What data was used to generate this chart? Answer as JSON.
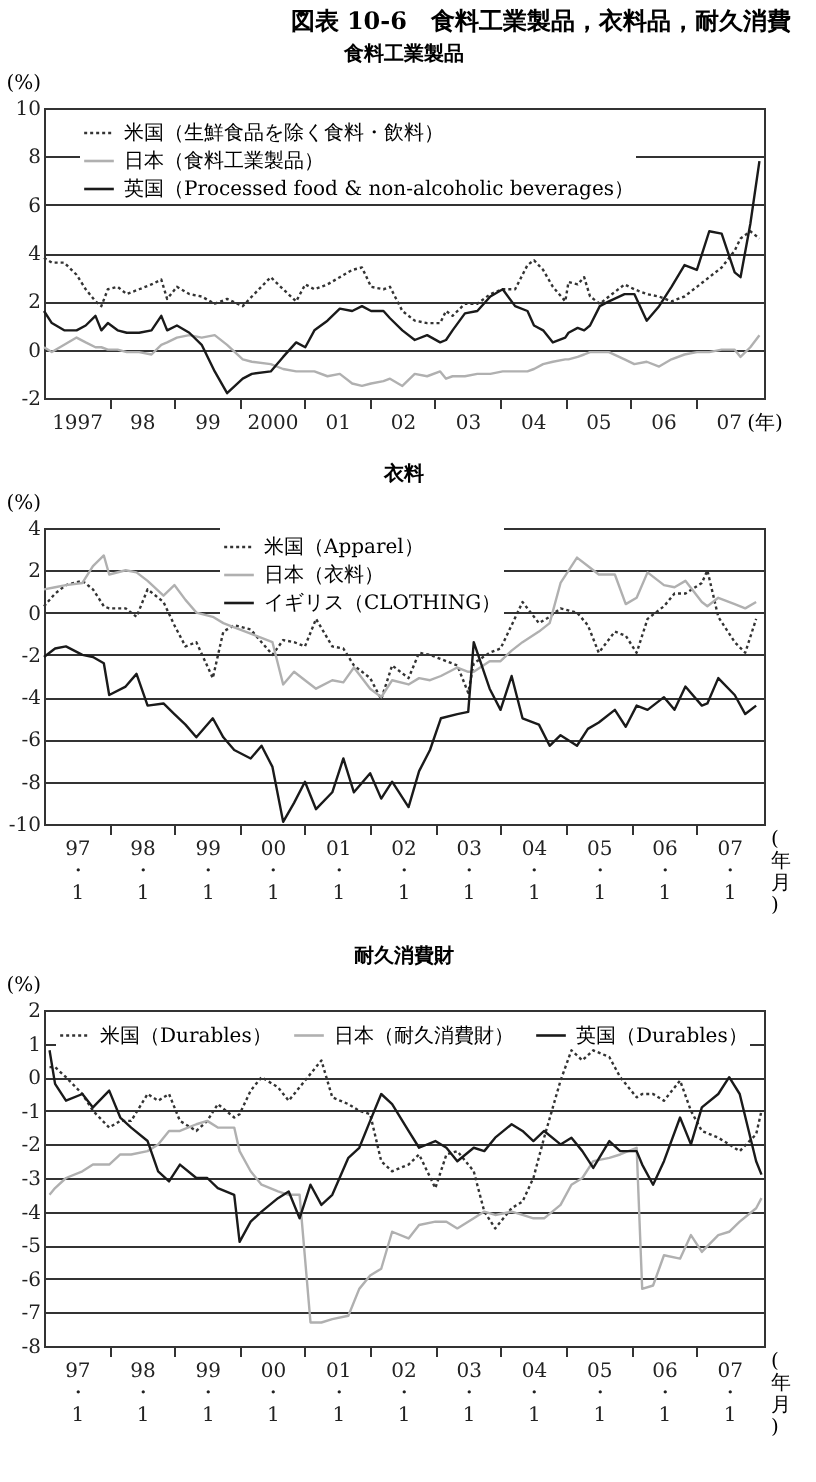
{
  "chart_data": [
    {
      "type": "line",
      "title": "図表 10-6　食料工業製品，衣料品，耐久消費",
      "subtitle": "食料工業製品",
      "ylabel": "(%)",
      "grid": "y",
      "legend": "top left",
      "xlim": [
        1996.5,
        2007.55
      ],
      "xticks": [
        {
          "value": 1997,
          "label": "1997"
        },
        {
          "value": 1997.5,
          "label": null
        },
        {
          "value": 1998,
          "label": "98"
        },
        {
          "value": 1998.5,
          "label": null
        },
        {
          "value": 1999,
          "label": "99"
        },
        {
          "value": 1999.5,
          "label": null
        },
        {
          "value": 2000,
          "label": "2000"
        },
        {
          "value": 2000.5,
          "label": null
        },
        {
          "value": 2001,
          "label": "01"
        },
        {
          "value": 2001.5,
          "label": null
        },
        {
          "value": 2002,
          "label": "02"
        },
        {
          "value": 2002.5,
          "label": null
        },
        {
          "value": 2003,
          "label": "03"
        },
        {
          "value": 2003.5,
          "label": null
        },
        {
          "value": 2004,
          "label": "04"
        },
        {
          "value": 2004.5,
          "label": null
        },
        {
          "value": 2005,
          "label": "05"
        },
        {
          "value": 2005.5,
          "label": null
        },
        {
          "value": 2006,
          "label": "06"
        },
        {
          "value": 2006.5,
          "label": null
        },
        {
          "value": 2007,
          "label": "07"
        }
      ],
      "xlabel": "(年)",
      "ylim": [
        -2,
        10
      ],
      "yticks": [
        -2,
        0,
        2,
        4,
        6,
        8,
        10
      ],
      "x": [
        1996.5,
        1996.62,
        1996.81,
        1997.0,
        1997.14,
        1997.29,
        1997.38,
        1997.48,
        1997.63,
        1997.77,
        1997.96,
        1998.15,
        1998.3,
        1998.39,
        1998.54,
        1998.73,
        1998.92,
        1999.12,
        1999.31,
        1999.55,
        1999.69,
        1999.98,
        2000.17,
        2000.37,
        2000.51,
        2000.65,
        2000.85,
        2001.04,
        2001.23,
        2001.38,
        2001.52,
        2001.71,
        2001.81,
        2002.0,
        2002.19,
        2002.38,
        2002.58,
        2002.67,
        2002.77,
        2002.96,
        2003.15,
        2003.35,
        2003.54,
        2003.73,
        2003.92,
        2004.02,
        2004.16,
        2004.31,
        2004.5,
        2004.55,
        2004.69,
        2004.79,
        2004.88,
        2005.03,
        2005.17,
        2005.41,
        2005.56,
        2005.75,
        2005.94,
        2006.13,
        2006.33,
        2006.52,
        2006.71,
        2006.9,
        2007.1,
        2007.19,
        2007.34,
        2007.48
      ],
      "series": [
        {
          "name": "米国（生鮮食品を除く食料・飲料）",
          "color": "#333333",
          "line_style": "dotted",
          "values": [
            3.8,
            3.6,
            3.6,
            3.1,
            2.5,
            2.0,
            1.8,
            2.5,
            2.6,
            2.3,
            2.5,
            2.7,
            2.9,
            2.1,
            2.6,
            2.3,
            2.2,
            1.9,
            2.1,
            1.8,
            2.2,
            3.0,
            2.5,
            2.0,
            2.7,
            2.5,
            2.7,
            3.0,
            3.3,
            3.4,
            2.6,
            2.5,
            2.6,
            1.6,
            1.2,
            1.1,
            1.1,
            1.6,
            1.4,
            1.9,
            1.9,
            2.3,
            2.5,
            2.5,
            3.5,
            3.7,
            3.3,
            2.6,
            2.0,
            2.8,
            2.7,
            3.0,
            2.2,
            1.9,
            2.2,
            2.7,
            2.5,
            2.3,
            2.2,
            2.0,
            2.2,
            2.6,
            3.0,
            3.4,
            4.1,
            4.6,
            4.9,
            4.6
          ]
        },
        {
          "name": "日本（食料工業製品）",
          "color": "#b0b0b0",
          "line_style": "solid",
          "values": [
            0.1,
            -0.1,
            0.2,
            0.5,
            0.3,
            0.1,
            0.1,
            0.0,
            0.0,
            -0.1,
            -0.1,
            -0.2,
            0.2,
            0.3,
            0.5,
            0.6,
            0.5,
            0.6,
            0.2,
            -0.4,
            -0.5,
            -0.6,
            -0.8,
            -0.9,
            -0.9,
            -0.9,
            -1.1,
            -1.0,
            -1.4,
            -1.5,
            -1.4,
            -1.3,
            -1.2,
            -1.5,
            -1.0,
            -1.1,
            -0.9,
            -1.2,
            -1.1,
            -1.1,
            -1.0,
            -1.0,
            -0.9,
            -0.9,
            -0.9,
            -0.8,
            -0.6,
            -0.5,
            -0.4,
            -0.4,
            -0.3,
            -0.2,
            -0.1,
            -0.1,
            -0.1,
            -0.4,
            -0.6,
            -0.5,
            -0.7,
            -0.4,
            -0.2,
            -0.1,
            -0.1,
            0.0,
            0.0,
            -0.3,
            0.1,
            0.6
          ]
        },
        {
          "name": "英国（Processed food & non-alcoholic beverages）",
          "color": "#1a1a1a",
          "line_style": "solid",
          "values": [
            1.6,
            1.1,
            0.8,
            0.8,
            1.0,
            1.4,
            0.8,
            1.1,
            0.8,
            0.7,
            0.7,
            0.8,
            1.4,
            0.8,
            1.0,
            0.7,
            0.2,
            -0.9,
            -1.8,
            -1.2,
            -1.0,
            -0.9,
            -0.3,
            0.3,
            0.1,
            0.8,
            1.2,
            1.7,
            1.6,
            1.8,
            1.6,
            1.6,
            1.3,
            0.8,
            0.4,
            0.6,
            0.3,
            0.4,
            0.8,
            1.5,
            1.6,
            2.2,
            2.5,
            1.8,
            1.6,
            1.0,
            0.8,
            0.3,
            0.5,
            0.7,
            0.9,
            0.8,
            1.0,
            1.8,
            2.0,
            2.3,
            2.3,
            1.2,
            1.8,
            2.6,
            3.5,
            3.3,
            4.9,
            4.8,
            3.2,
            3.0,
            5.2,
            7.8
          ]
        }
      ]
    },
    {
      "type": "line",
      "title": "衣料",
      "ylabel": "(%)",
      "xlabel": "(年月)",
      "grid": "y",
      "legend": "top",
      "xlim": [
        "1996-07",
        "2007-07-15"
      ],
      "xticks": [
        {
          "value": "1997-01",
          "label": "97\n・\n1"
        },
        {
          "value": "1997-07",
          "label": null
        },
        {
          "value": "1998-01",
          "label": "98\n・\n1"
        },
        {
          "value": "1998-07",
          "label": null
        },
        {
          "value": "1999-01",
          "label": "99\n・\n1"
        },
        {
          "value": "1999-07",
          "label": null
        },
        {
          "value": "2000-01",
          "label": "00\n・\n1"
        },
        {
          "value": "2000-07",
          "label": null
        },
        {
          "value": "2001-01",
          "label": "01\n・\n1"
        },
        {
          "value": "2001-07",
          "label": null
        },
        {
          "value": "2002-01",
          "label": "02\n・\n1"
        },
        {
          "value": "2002-07",
          "label": null
        },
        {
          "value": "2003-01",
          "label": "03\n・\n1"
        },
        {
          "value": "2003-07",
          "label": null
        },
        {
          "value": "2004-01",
          "label": "04\n・\n1"
        },
        {
          "value": "2004-07",
          "label": null
        },
        {
          "value": "2005-01",
          "label": "05\n・\n1"
        },
        {
          "value": "2005-07",
          "label": null
        },
        {
          "value": "2006-01",
          "label": "06\n・\n1"
        },
        {
          "value": "2006-07",
          "label": null
        },
        {
          "value": "2007-01",
          "label": "07\n・\n1"
        }
      ],
      "ylim": [
        -10,
        4
      ],
      "yticks": [
        -10,
        -8,
        -6,
        -4,
        -2,
        0,
        2,
        4
      ],
      "x": [
        "1996-07",
        "1996-09",
        "1996-11",
        "1997-02",
        "1997-04",
        "1997-06",
        "1997-07",
        "1997-10",
        "1997-12",
        "1998-02",
        "1998-05",
        "1998-07",
        "1998-09",
        "1998-11",
        "1999-02",
        "1999-04",
        "1999-06",
        "1999-09",
        "1999-11",
        "2000-01",
        "2000-03",
        "2000-05",
        "2000-07",
        "2000-09",
        "2000-12",
        "2001-02",
        "2001-04",
        "2001-07",
        "2001-09",
        "2001-11",
        "2002-02",
        "2002-04",
        "2002-06",
        "2002-08",
        "2002-11",
        "2003-01",
        "2003-02",
        "2003-05",
        "2003-07",
        "2003-09",
        "2003-11",
        "2004-02",
        "2004-04",
        "2004-06",
        "2004-09",
        "2004-11",
        "2005-01",
        "2005-04",
        "2005-06",
        "2005-08",
        "2005-10",
        "2006-01",
        "2006-03",
        "2006-05",
        "2006-08",
        "2006-09",
        "2006-11",
        "2007-02",
        "2007-04",
        "2007-06"
      ],
      "series": [
        {
          "name": "米国（Apparel）",
          "color": "#333333",
          "line_style": "dotted",
          "values": [
            0.3,
            0.9,
            1.3,
            1.5,
            1.1,
            0.3,
            0.2,
            0.2,
            -0.2,
            1.1,
            0.5,
            -0.6,
            -1.6,
            -1.4,
            -3.1,
            -0.9,
            -0.6,
            -0.8,
            -1.4,
            -2.0,
            -1.3,
            -1.4,
            -1.6,
            -0.3,
            -1.6,
            -1.7,
            -2.5,
            -3.1,
            -4.1,
            -2.5,
            -3.1,
            -1.9,
            -2.0,
            -2.2,
            -2.5,
            -3.8,
            -2.4,
            -1.9,
            -1.7,
            -0.6,
            0.5,
            -0.5,
            -0.2,
            0.2,
            0.0,
            -0.6,
            -1.9,
            -0.9,
            -1.1,
            -1.9,
            -0.3,
            0.3,
            0.9,
            0.9,
            1.4,
            2.0,
            -0.2,
            -1.4,
            -1.9,
            -0.3
          ]
        },
        {
          "name": "日本（衣料）",
          "color": "#b0b0b0",
          "line_style": "solid",
          "values": [
            1.1,
            1.2,
            1.3,
            1.4,
            2.2,
            2.7,
            1.8,
            2.0,
            1.9,
            1.5,
            0.8,
            1.3,
            0.6,
            0.0,
            -0.2,
            -0.5,
            -0.7,
            -1.0,
            -1.2,
            -1.4,
            -3.4,
            -2.8,
            -3.2,
            -3.6,
            -3.2,
            -3.3,
            -2.6,
            -3.6,
            -4.0,
            -3.2,
            -3.4,
            -3.1,
            -3.2,
            -3.0,
            -2.6,
            -2.8,
            -2.8,
            -2.3,
            -2.3,
            -1.8,
            -1.4,
            -0.9,
            -0.5,
            1.4,
            2.6,
            2.2,
            1.8,
            1.8,
            0.4,
            0.7,
            1.9,
            1.3,
            1.2,
            1.5,
            0.5,
            0.3,
            0.7,
            0.4,
            0.2,
            0.5
          ]
        },
        {
          "name": "イギリス（CLOTHING）",
          "color": "#1a1a1a",
          "line_style": "solid",
          "values": [
            -2.1,
            -1.7,
            -1.6,
            -2.0,
            -2.1,
            -2.4,
            -3.9,
            -3.5,
            -2.9,
            -4.4,
            -4.3,
            -4.8,
            -5.3,
            -5.9,
            -5.0,
            -5.9,
            -6.5,
            -6.9,
            -6.3,
            -7.3,
            -9.9,
            -9.0,
            -8.0,
            -9.3,
            -8.5,
            -6.9,
            -8.5,
            -7.6,
            -8.8,
            -8.0,
            -9.2,
            -7.5,
            -6.5,
            -5.0,
            -4.8,
            -4.7,
            -1.4,
            -3.6,
            -4.6,
            -3.0,
            -5.0,
            -5.3,
            -6.3,
            -5.8,
            -6.3,
            -5.5,
            -5.2,
            -4.6,
            -5.4,
            -4.4,
            -4.6,
            -4.0,
            -4.6,
            -3.5,
            -4.4,
            -4.3,
            -3.1,
            -3.9,
            -4.8,
            -4.4
          ]
        }
      ]
    },
    {
      "type": "line",
      "title": "耐久消費財",
      "ylabel": "(%)",
      "xlabel": "(年月)",
      "grid": "y",
      "legend": "top left",
      "xlim": [
        "1996-07",
        "2007-07-15"
      ],
      "xticks": [
        {
          "value": "1997-01",
          "label": "97\n・\n1"
        },
        {
          "value": "1997-07",
          "label": null
        },
        {
          "value": "1998-01",
          "label": "98\n・\n1"
        },
        {
          "value": "1998-07",
          "label": null
        },
        {
          "value": "1999-01",
          "label": "99\n・\n1"
        },
        {
          "value": "1999-07",
          "label": null
        },
        {
          "value": "2000-01",
          "label": "00\n・\n1"
        },
        {
          "value": "2000-07",
          "label": null
        },
        {
          "value": "2001-01",
          "label": "01\n・\n1"
        },
        {
          "value": "2001-07",
          "label": null
        },
        {
          "value": "2002-01",
          "label": "02\n・\n1"
        },
        {
          "value": "2002-07",
          "label": null
        },
        {
          "value": "2003-01",
          "label": "03\n・\n1"
        },
        {
          "value": "2003-07",
          "label": null
        },
        {
          "value": "2004-01",
          "label": "04\n・\n1"
        },
        {
          "value": "2004-07",
          "label": null
        },
        {
          "value": "2005-01",
          "label": "05\n・\n1"
        },
        {
          "value": "2005-07",
          "label": null
        },
        {
          "value": "2006-01",
          "label": "06\n・\n1"
        },
        {
          "value": "2006-07",
          "label": null
        },
        {
          "value": "2007-01",
          "label": "07\n・\n1"
        }
      ],
      "ylim": [
        -8,
        2
      ],
      "yticks": [
        -8,
        -7,
        -6,
        -5,
        -4,
        -3,
        -2,
        -1,
        0,
        1,
        2
      ],
      "x": [
        "1996-08",
        "1996-09",
        "1996-11",
        "1997-02",
        "1997-04",
        "1997-07",
        "1997-09",
        "1997-11",
        "1998-02",
        "1998-04",
        "1998-06",
        "1998-08",
        "1998-11",
        "1999-01",
        "1999-03",
        "1999-06",
        "1999-07",
        "1999-09",
        "1999-11",
        "2000-02",
        "2000-04",
        "2000-06",
        "2000-08",
        "2000-10",
        "2000-12",
        "2001-03",
        "2001-05",
        "2001-07",
        "2001-09",
        "2001-11",
        "2002-02",
        "2002-04",
        "2002-07",
        "2002-09",
        "2002-11",
        "2003-02",
        "2003-04",
        "2003-06",
        "2003-09",
        "2003-11",
        "2004-01",
        "2004-03",
        "2004-06",
        "2004-08",
        "2004-10",
        "2004-12",
        "2005-03",
        "2005-05",
        "2005-08",
        "2005-09",
        "2005-11",
        "2006-01",
        "2006-04",
        "2006-06",
        "2006-08",
        "2006-11",
        "2007-01",
        "2007-03",
        "2007-06",
        "2007-07"
      ],
      "series": [
        {
          "name": "米国（Durables）",
          "color": "#333333",
          "line_style": "dotted",
          "values": [
            0.3,
            0.3,
            0.0,
            -0.5,
            -1.0,
            -1.5,
            -1.3,
            -1.3,
            -0.5,
            -0.7,
            -0.5,
            -1.3,
            -1.6,
            -1.3,
            -0.8,
            -1.2,
            -1.1,
            -0.4,
            0.0,
            -0.3,
            -0.7,
            -0.3,
            0.1,
            0.5,
            -0.6,
            -0.8,
            -1.0,
            -1.1,
            -2.5,
            -2.8,
            -2.6,
            -2.3,
            -3.3,
            -2.3,
            -2.2,
            -2.8,
            -4.0,
            -4.5,
            -3.9,
            -3.7,
            -3.0,
            -1.8,
            -0.1,
            0.8,
            0.5,
            0.8,
            0.6,
            0.0,
            -0.6,
            -0.5,
            -0.5,
            -0.7,
            -0.1,
            -1.0,
            -1.6,
            -1.8,
            -2.0,
            -2.2,
            -1.7,
            -1.0
          ]
        },
        {
          "name": "日本（耐久消費財）",
          "color": "#b0b0b0",
          "line_style": "solid",
          "values": [
            -3.5,
            -3.3,
            -3.0,
            -2.8,
            -2.6,
            -2.6,
            -2.3,
            -2.3,
            -2.2,
            -2.0,
            -1.6,
            -1.6,
            -1.4,
            -1.3,
            -1.5,
            -1.5,
            -2.2,
            -2.8,
            -3.2,
            -3.4,
            -3.5,
            -3.5,
            -7.3,
            -7.3,
            -7.2,
            -7.1,
            -6.3,
            -5.9,
            -5.7,
            -4.6,
            -4.8,
            -4.4,
            -4.3,
            -4.3,
            -4.5,
            -4.2,
            -4.0,
            -4.1,
            -4.0,
            -4.1,
            -4.2,
            -4.2,
            -3.8,
            -3.2,
            -3.0,
            -2.5,
            -2.4,
            -2.3,
            -2.1,
            -6.3,
            -6.2,
            -5.3,
            -5.4,
            -4.7,
            -5.2,
            -4.7,
            -4.6,
            -4.3,
            -3.9,
            -3.6
          ]
        },
        {
          "name": "英国（Durables）",
          "color": "#1a1a1a",
          "line_style": "solid",
          "values": [
            0.8,
            -0.2,
            -0.7,
            -0.5,
            -0.9,
            -0.4,
            -1.2,
            -1.5,
            -1.9,
            -2.8,
            -3.1,
            -2.6,
            -3.0,
            -3.0,
            -3.3,
            -3.5,
            -4.9,
            -4.3,
            -4.0,
            -3.6,
            -3.4,
            -4.2,
            -3.2,
            -3.8,
            -3.5,
            -2.4,
            -2.1,
            -1.3,
            -0.5,
            -0.8,
            -1.6,
            -2.1,
            -1.9,
            -2.1,
            -2.5,
            -2.1,
            -2.2,
            -1.8,
            -1.4,
            -1.6,
            -1.9,
            -1.6,
            -2.0,
            -1.8,
            -2.2,
            -2.7,
            -1.9,
            -2.2,
            -2.2,
            -2.6,
            -3.2,
            -2.5,
            -1.2,
            -2.0,
            -0.9,
            -0.5,
            0.0,
            -0.5,
            -2.5,
            -2.9
          ]
        }
      ]
    }
  ]
}
